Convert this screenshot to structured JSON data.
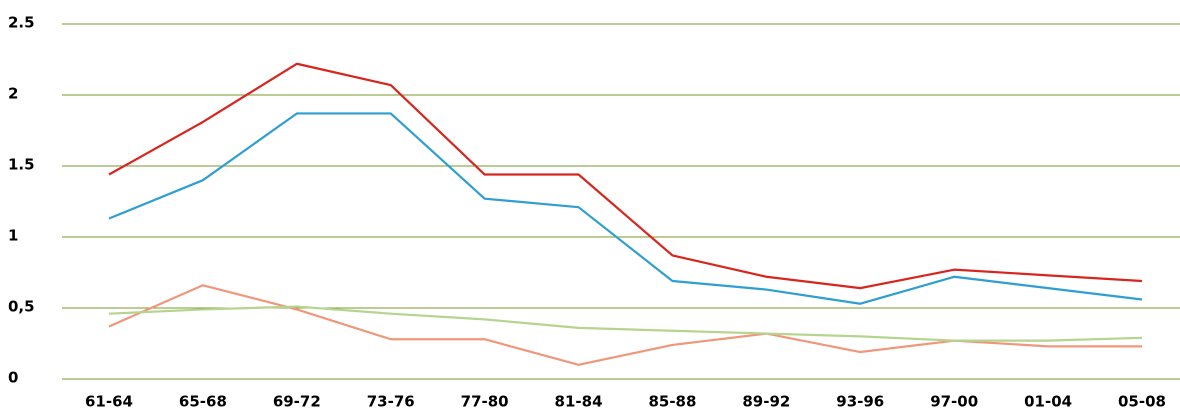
{
  "chart_data": {
    "type": "line",
    "categories": [
      "61-64",
      "65-68",
      "69-72",
      "73-76",
      "77-80",
      "81-84",
      "85-88",
      "89-92",
      "93-96",
      "97-00",
      "01-04",
      "05-08"
    ],
    "series": [
      {
        "color": "#d7261e",
        "values": [
          1.44,
          1.81,
          2.22,
          2.07,
          1.44,
          1.44,
          0.87,
          0.72,
          0.64,
          0.77,
          0.73,
          0.69
        ]
      },
      {
        "color": "#2e9fd0",
        "values": [
          1.13,
          1.4,
          1.87,
          1.87,
          1.27,
          1.21,
          0.69,
          0.63,
          0.53,
          0.72,
          0.64,
          0.56
        ]
      },
      {
        "color": "#f0977a",
        "values": [
          0.37,
          0.66,
          0.49,
          0.28,
          0.28,
          0.1,
          0.24,
          0.32,
          0.19,
          0.27,
          0.23,
          0.23
        ]
      },
      {
        "color": "#b5d48e",
        "values": [
          0.46,
          0.49,
          0.51,
          0.46,
          0.42,
          0.36,
          0.34,
          0.32,
          0.3,
          0.27,
          0.27,
          0.29
        ]
      }
    ],
    "ylim": [
      0,
      2.5
    ],
    "yticks": [
      0,
      {
        "value": 0.5,
        "label": "0,5"
      },
      1,
      1.5,
      2,
      2.5
    ],
    "grid": true,
    "grid_color": "#7a9a2c"
  }
}
